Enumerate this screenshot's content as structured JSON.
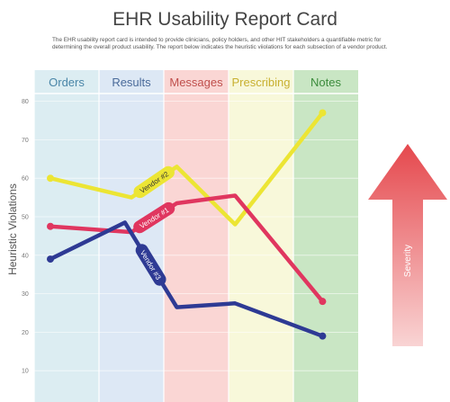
{
  "header": {
    "title": "EHR Usability Report Card",
    "description": "The EHR usability report card is intended to provide clinicians, policy holders, and other HIT stakeholders a quantifiable metric for determining the overall product usability.  The report below indicates the heuristic viiolations for each subsection of a vendor product."
  },
  "severity": {
    "label": "Severity"
  },
  "chart_data": {
    "type": "line",
    "title": "EHR Usability Report Card",
    "xlabel": "",
    "ylabel": "Heuristic Violations",
    "categories": [
      "Orders",
      "Results",
      "Messages",
      "Prescribing",
      "Notes"
    ],
    "category_colors": [
      "#dcedf2",
      "#dde8f5",
      "#fad6d4",
      "#f8f8da",
      "#c9e6c4"
    ],
    "category_label_colors": [
      "#4a86a8",
      "#4a6a9a",
      "#c0504d",
      "#c8b030",
      "#3c8c3c"
    ],
    "yticks": [
      10,
      20,
      30,
      40,
      50,
      60,
      70,
      80
    ],
    "ylim": [
      0,
      86
    ],
    "x": [
      0.25,
      1.5,
      2.2,
      3.1,
      4.45
    ],
    "series": [
      {
        "name": "Vendor #2",
        "color": "#ece534",
        "label_text_color": "#333333",
        "x": [
          0.25,
          1.5,
          2.2,
          3.1,
          4.45
        ],
        "values": [
          60,
          55,
          63,
          48,
          77
        ]
      },
      {
        "name": "Vendor #1",
        "color": "#e0365f",
        "label_text_color": "#ffffff",
        "x": [
          0.25,
          1.5,
          2.2,
          3.1,
          4.45
        ],
        "values": [
          47.5,
          46,
          53.5,
          55.5,
          28
        ]
      },
      {
        "name": "Vendor #3",
        "color": "#2e3a94",
        "label_text_color": "#ffffff",
        "x": [
          0.25,
          1.4,
          2.2,
          3.1,
          4.45
        ],
        "values": [
          39,
          48.5,
          26.5,
          27.5,
          19
        ]
      }
    ],
    "grid": true,
    "legend": "inline on lines"
  }
}
